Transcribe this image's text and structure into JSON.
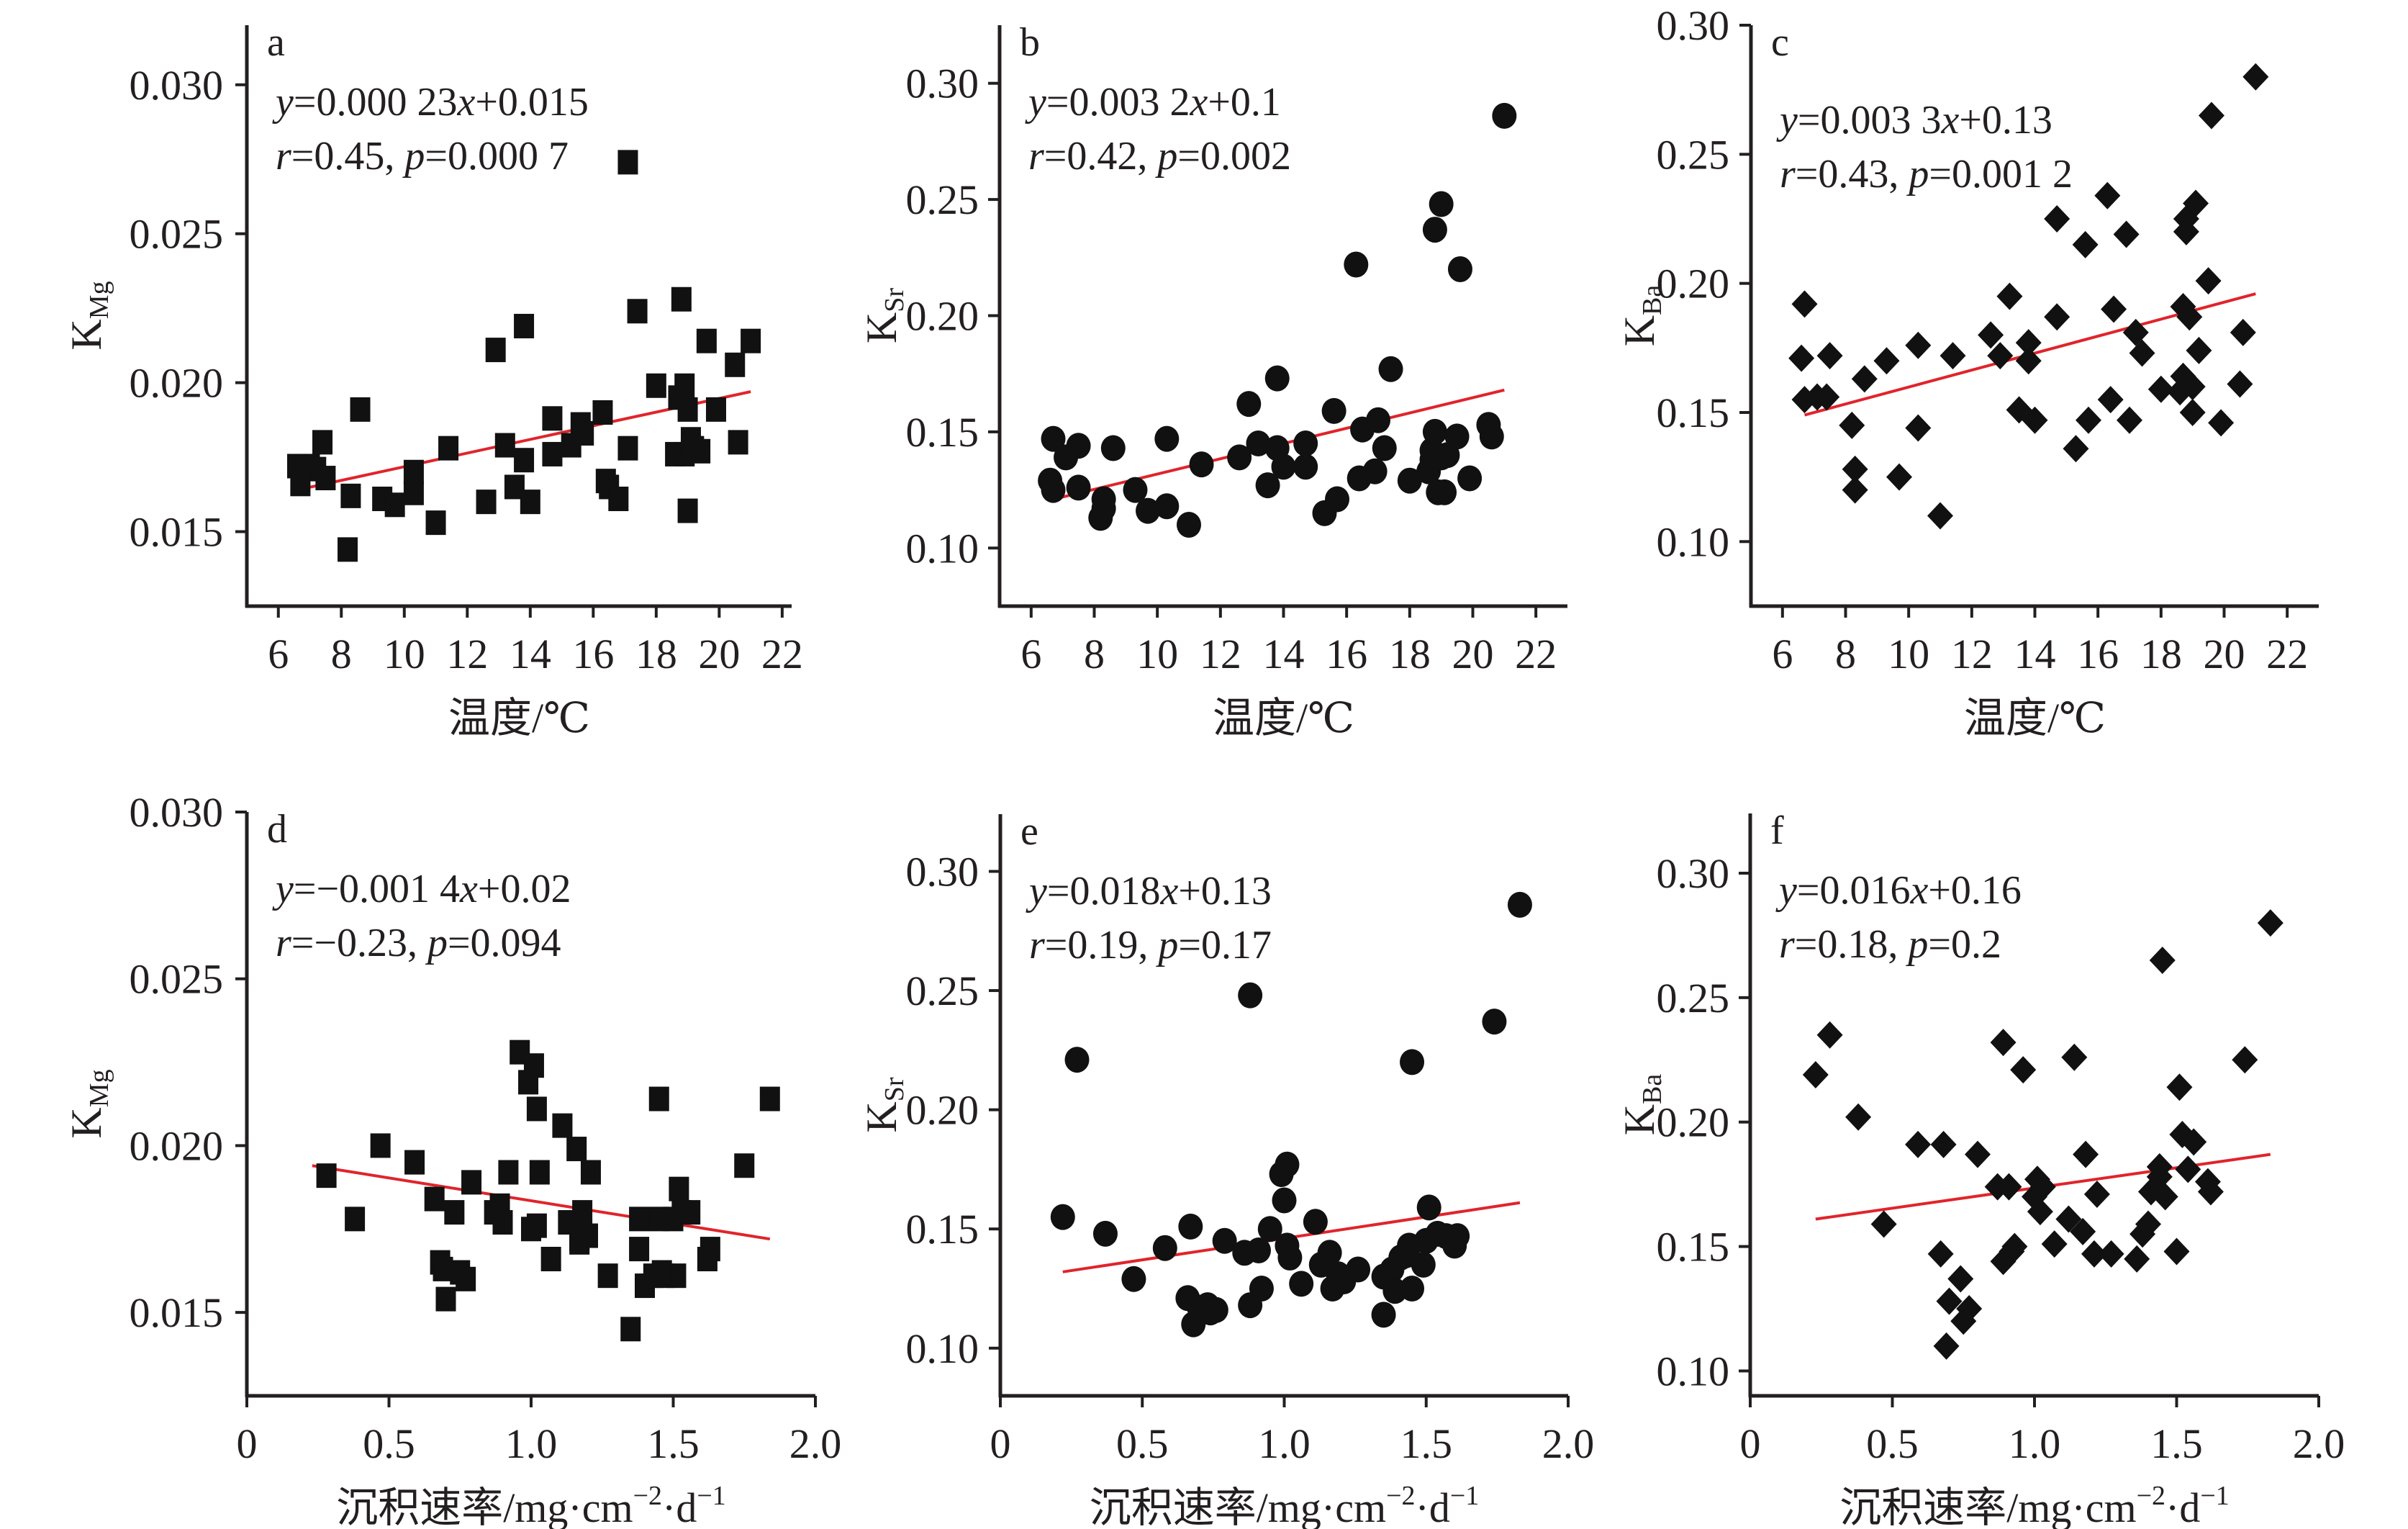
{
  "figure": {
    "regression_line_color": "#e0242b",
    "marker_color": "#111111"
  },
  "chart_data": [
    {
      "id": "a",
      "type": "scatter",
      "panel_label": "a",
      "marker": "square",
      "xlabel": "温度/℃",
      "ylabel_main": "K",
      "ylabel_sub": "Mg",
      "xlim": [
        5.0,
        22.3
      ],
      "ylim": [
        0.0125,
        0.032
      ],
      "xticks": [
        6,
        8,
        10,
        12,
        14,
        16,
        18,
        20,
        22
      ],
      "xtick_labels": [
        "6",
        "8",
        "10",
        "12",
        "14",
        "16",
        "18",
        "20",
        "22"
      ],
      "yticks": [
        0.015,
        0.02,
        0.025,
        0.03
      ],
      "ytick_labels": [
        "0.015",
        "0.020",
        "0.025",
        "0.030"
      ],
      "equation": {
        "y": "y",
        "rest": "=0.000 23",
        "x": "x",
        "tail": "+0.015"
      },
      "stats": {
        "r": "r",
        "r_val": "=0.45, ",
        "p": "p",
        "p_val": "=0.000 7"
      },
      "fit": {
        "slope": 0.00023,
        "intercept": 0.015,
        "x_range": [
          6.6,
          21.0
        ],
        "y_range": [
          0.0164,
          0.0197
        ]
      },
      "x": [
        6.6,
        6.8,
        7.0,
        7.2,
        6.7,
        7.5,
        7.4,
        8.3,
        8.6,
        8.2,
        9.3,
        9.7,
        10.3,
        10.3,
        11.0,
        11.4,
        12.6,
        12.9,
        13.2,
        13.5,
        13.8,
        13.8,
        14.0,
        14.7,
        14.7,
        15.3,
        15.6,
        15.7,
        16.3,
        16.4,
        16.5,
        16.8,
        17.1,
        17.4,
        17.1,
        18.0,
        18.6,
        18.7,
        18.8,
        18.9,
        19.0,
        19.0,
        19.1,
        19.2,
        19.4,
        19.6,
        19.9,
        20.5,
        20.6,
        21.0,
        18.9,
        19.1
      ],
      "y": [
        0.0172,
        0.0172,
        0.0172,
        0.0171,
        0.0166,
        0.0168,
        0.018,
        0.0162,
        0.0191,
        0.0144,
        0.0161,
        0.0159,
        0.0163,
        0.017,
        0.0153,
        0.0178,
        0.016,
        0.0211,
        0.0179,
        0.0165,
        0.0174,
        0.0219,
        0.016,
        0.0176,
        0.0188,
        0.0179,
        0.0186,
        0.0183,
        0.019,
        0.0167,
        0.0165,
        0.0161,
        0.0274,
        0.0224,
        0.0178,
        0.0199,
        0.0176,
        0.0195,
        0.0228,
        0.0199,
        0.0191,
        0.0157,
        0.0181,
        0.0178,
        0.0177,
        0.0214,
        0.0191,
        0.0206,
        0.018,
        0.0214,
        0.0176,
        0.0178
      ]
    },
    {
      "id": "b",
      "type": "scatter",
      "panel_label": "b",
      "marker": "circle",
      "xlabel": "温度/℃",
      "ylabel_main": "K",
      "ylabel_sub": "Sr",
      "xlim": [
        5.0,
        23.0
      ],
      "ylim": [
        0.075,
        0.325
      ],
      "xticks": [
        6,
        8,
        10,
        12,
        14,
        16,
        18,
        20,
        22
      ],
      "xtick_labels": [
        "6",
        "8",
        "10",
        "12",
        "14",
        "16",
        "18",
        "20",
        "22"
      ],
      "yticks": [
        0.1,
        0.15,
        0.2,
        0.25,
        0.3
      ],
      "ytick_labels": [
        "0.10",
        "0.15",
        "0.20",
        "0.25",
        "0.30"
      ],
      "equation": {
        "y": "y",
        "rest": "=0.003 2",
        "x": "x",
        "tail": "+0.1"
      },
      "stats": {
        "r": "r",
        "r_val": "=0.42, ",
        "p": "p",
        "p_val": "=0.002"
      },
      "fit": {
        "slope": 0.0032,
        "intercept": 0.1,
        "x_range": [
          6.7,
          21.0
        ],
        "y_range": [
          0.121,
          0.168
        ]
      },
      "x": [
        6.6,
        6.7,
        6.7,
        7.1,
        7.5,
        7.5,
        8.2,
        8.3,
        8.3,
        8.6,
        9.3,
        9.7,
        10.3,
        10.3,
        11.0,
        11.4,
        12.6,
        12.9,
        13.2,
        13.5,
        13.8,
        13.8,
        14.0,
        14.7,
        14.7,
        15.3,
        15.6,
        15.7,
        16.3,
        16.4,
        16.5,
        16.9,
        17.0,
        17.2,
        17.4,
        18.0,
        18.6,
        18.7,
        18.7,
        18.8,
        18.9,
        19.0,
        19.1,
        19.2,
        19.5,
        19.6,
        19.9,
        20.5,
        20.6,
        21.0,
        18.8,
        19.0
      ],
      "y": [
        0.129,
        0.125,
        0.147,
        0.139,
        0.144,
        0.126,
        0.113,
        0.117,
        0.121,
        0.143,
        0.125,
        0.116,
        0.147,
        0.118,
        0.11,
        0.136,
        0.139,
        0.162,
        0.145,
        0.127,
        0.143,
        0.173,
        0.135,
        0.145,
        0.135,
        0.115,
        0.159,
        0.121,
        0.222,
        0.13,
        0.151,
        0.133,
        0.155,
        0.143,
        0.177,
        0.129,
        0.133,
        0.138,
        0.142,
        0.15,
        0.124,
        0.139,
        0.124,
        0.14,
        0.148,
        0.22,
        0.13,
        0.153,
        0.148,
        0.286,
        0.237,
        0.248
      ]
    },
    {
      "id": "c",
      "type": "scatter",
      "panel_label": "c",
      "marker": "diamond",
      "xlabel": "温度/℃",
      "ylabel_main": "K",
      "ylabel_sub": "Ba",
      "xlim": [
        5.0,
        23.0
      ],
      "ylim": [
        0.075,
        0.3
      ],
      "xticks": [
        6,
        8,
        10,
        12,
        14,
        16,
        18,
        20,
        22
      ],
      "xtick_labels": [
        "6",
        "8",
        "10",
        "12",
        "14",
        "16",
        "18",
        "20",
        "22"
      ],
      "yticks": [
        0.1,
        0.15,
        0.2,
        0.25,
        0.3
      ],
      "ytick_labels": [
        "0.10",
        "0.15",
        "0.20",
        "0.25",
        "0.30"
      ],
      "equation": {
        "y": "y",
        "rest": "=0.003 3",
        "x": "x",
        "tail": "+0.13"
      },
      "stats": {
        "r": "r",
        "r_val": "=0.43, ",
        "p": "p",
        "p_val": "=0.001 2"
      },
      "fit": {
        "slope": 0.0033,
        "intercept": 0.13,
        "x_range": [
          6.7,
          21.0
        ],
        "y_range": [
          0.149,
          0.196
        ]
      },
      "x": [
        6.7,
        6.6,
        6.7,
        7.1,
        7.5,
        7.4,
        8.2,
        8.3,
        8.3,
        8.6,
        9.3,
        9.7,
        10.3,
        10.3,
        11.0,
        11.4,
        12.6,
        12.9,
        13.2,
        13.5,
        13.8,
        13.8,
        14.0,
        14.7,
        14.7,
        15.3,
        15.6,
        15.7,
        16.3,
        16.4,
        16.5,
        16.9,
        17.0,
        17.2,
        17.4,
        18.0,
        18.6,
        18.7,
        18.7,
        18.8,
        18.8,
        18.9,
        19.0,
        19.0,
        19.1,
        19.2,
        19.5,
        19.6,
        19.9,
        20.5,
        20.6,
        21.0
      ],
      "y": [
        0.192,
        0.171,
        0.155,
        0.156,
        0.172,
        0.156,
        0.145,
        0.128,
        0.12,
        0.163,
        0.17,
        0.125,
        0.176,
        0.144,
        0.11,
        0.172,
        0.18,
        0.172,
        0.195,
        0.151,
        0.177,
        0.17,
        0.147,
        0.225,
        0.187,
        0.136,
        0.215,
        0.147,
        0.234,
        0.155,
        0.19,
        0.219,
        0.147,
        0.181,
        0.173,
        0.159,
        0.158,
        0.191,
        0.164,
        0.225,
        0.22,
        0.187,
        0.15,
        0.16,
        0.231,
        0.174,
        0.201,
        0.265,
        0.146,
        0.161,
        0.181,
        0.28
      ]
    },
    {
      "id": "d",
      "type": "scatter",
      "panel_label": "d",
      "marker": "square",
      "xlabel": "沉积速率/mg·cm",
      "xlabel_sup1": "−2",
      "xlabel_mid": "·d",
      "xlabel_sup2": "−1",
      "ylabel_main": "K",
      "ylabel_sub": "Mg",
      "xlim": [
        0,
        2.0
      ],
      "ylim": [
        0.0125,
        0.03
      ],
      "xticks": [
        0,
        0.5,
        1.0,
        1.5,
        2.0
      ],
      "xtick_labels": [
        "0",
        "0.5",
        "1.0",
        "1.5",
        "2.0"
      ],
      "yticks": [
        0.015,
        0.02,
        0.025,
        0.03
      ],
      "ytick_labels": [
        "0.015",
        "0.020",
        "0.025",
        "0.030"
      ],
      "equation": {
        "y": "y",
        "rest": "=−0.001 4",
        "x": "x",
        "tail": "+0.02"
      },
      "stats": {
        "r": "r",
        "r_val": "=−0.23, ",
        "p": "p",
        "p_val": "=0.094"
      },
      "fit": {
        "slope": -0.0014,
        "intercept": 0.02,
        "x_range": [
          0.23,
          1.84
        ],
        "y_range": [
          0.0194,
          0.0172
        ]
      },
      "x": [
        0.28,
        0.38,
        0.47,
        0.59,
        0.66,
        0.68,
        0.69,
        0.7,
        0.73,
        0.75,
        0.77,
        0.79,
        0.87,
        0.89,
        0.9,
        0.92,
        0.96,
        0.99,
        1.01,
        1.02,
        1.0,
        1.02,
        1.03,
        1.07,
        1.11,
        1.13,
        1.16,
        1.17,
        1.18,
        1.17,
        1.2,
        1.21,
        1.27,
        1.35,
        1.38,
        1.38,
        1.4,
        1.43,
        1.45,
        1.45,
        1.47,
        1.51,
        1.52,
        1.53,
        1.56,
        1.62,
        1.63,
        1.75,
        1.84,
        1.46,
        1.5
      ],
      "y": [
        0.0191,
        0.0178,
        0.02,
        0.0195,
        0.0184,
        0.0165,
        0.0163,
        0.0154,
        0.018,
        0.0162,
        0.016,
        0.0189,
        0.018,
        0.0182,
        0.0177,
        0.0192,
        0.0228,
        0.0219,
        0.0224,
        0.0211,
        0.0175,
        0.0176,
        0.0192,
        0.0166,
        0.0206,
        0.0177,
        0.0199,
        0.0172,
        0.018,
        0.0171,
        0.0173,
        0.0192,
        0.0161,
        0.0145,
        0.0169,
        0.0178,
        0.0158,
        0.0161,
        0.0178,
        0.0214,
        0.0161,
        0.0161,
        0.0187,
        0.018,
        0.018,
        0.0166,
        0.0169,
        0.0194,
        0.0214,
        0.0162,
        0.0178
      ]
    },
    {
      "id": "e",
      "type": "scatter",
      "panel_label": "e",
      "marker": "circle",
      "xlabel": "沉积速率/mg·cm",
      "xlabel_sup1": "−2",
      "xlabel_mid": "·d",
      "xlabel_sup2": "−1",
      "ylabel_main": "K",
      "ylabel_sub": "Sr",
      "xlim": [
        0,
        2.0
      ],
      "ylim": [
        0.08,
        0.324
      ],
      "xticks": [
        0,
        0.5,
        1.0,
        1.5,
        2.0
      ],
      "xtick_labels": [
        "0",
        "0.5",
        "1.0",
        "1.5",
        "2.0"
      ],
      "yticks": [
        0.1,
        0.15,
        0.2,
        0.25,
        0.3
      ],
      "ytick_labels": [
        "0.10",
        "0.15",
        "0.20",
        "0.25",
        "0.30"
      ],
      "equation": {
        "y": "y",
        "rest": "=0.018",
        "x": "x",
        "tail": "+0.13"
      },
      "stats": {
        "r": "r",
        "r_val": "=0.19, ",
        "p": "p",
        "p_val": "=0.17"
      },
      "fit": {
        "slope": 0.018,
        "intercept": 0.13,
        "x_range": [
          0.22,
          1.83
        ],
        "y_range": [
          0.132,
          0.161
        ]
      },
      "x": [
        0.22,
        0.27,
        0.37,
        0.47,
        0.58,
        0.66,
        0.67,
        0.68,
        0.7,
        0.73,
        0.74,
        0.76,
        0.79,
        0.86,
        0.88,
        0.88,
        0.91,
        0.92,
        0.95,
        0.99,
        1.0,
        1.01,
        1.01,
        1.02,
        1.06,
        1.11,
        1.13,
        1.16,
        1.17,
        1.19,
        1.21,
        1.26,
        1.35,
        1.35,
        1.38,
        1.39,
        1.41,
        1.43,
        1.44,
        1.45,
        1.45,
        1.49,
        1.5,
        1.51,
        1.54,
        1.57,
        1.6,
        1.61,
        1.74,
        1.83
      ],
      "y": [
        0.155,
        0.221,
        0.148,
        0.129,
        0.142,
        0.121,
        0.151,
        0.11,
        0.117,
        0.118,
        0.115,
        0.116,
        0.145,
        0.14,
        0.248,
        0.118,
        0.141,
        0.125,
        0.15,
        0.173,
        0.162,
        0.177,
        0.143,
        0.138,
        0.127,
        0.153,
        0.135,
        0.14,
        0.125,
        0.131,
        0.128,
        0.133,
        0.13,
        0.114,
        0.133,
        0.124,
        0.138,
        0.139,
        0.143,
        0.22,
        0.125,
        0.135,
        0.145,
        0.159,
        0.148,
        0.147,
        0.143,
        0.147,
        0.237,
        0.286
      ]
    },
    {
      "id": "f",
      "type": "scatter",
      "panel_label": "f",
      "marker": "diamond",
      "xlabel": "沉积速率/mg·cm",
      "xlabel_sup1": "−2",
      "xlabel_mid": "·d",
      "xlabel_sup2": "−1",
      "ylabel_main": "K",
      "ylabel_sub": "Ba",
      "xlim": [
        0,
        2.0
      ],
      "ylim": [
        0.09,
        0.324
      ],
      "xticks": [
        0,
        0.5,
        1.0,
        1.5,
        2.0
      ],
      "xtick_labels": [
        "0",
        "0.5",
        "1.0",
        "1.5",
        "2.0"
      ],
      "yticks": [
        0.1,
        0.15,
        0.2,
        0.25,
        0.3
      ],
      "ytick_labels": [
        "0.10",
        "0.15",
        "0.20",
        "0.25",
        "0.30"
      ],
      "equation": {
        "y": "y",
        "rest": "=0.016",
        "x": "x",
        "tail": "+0.16"
      },
      "stats": {
        "r": "r",
        "r_val": "=0.18, ",
        "p": "p",
        "p_val": "=0.2"
      },
      "fit": {
        "slope": 0.016,
        "intercept": 0.16,
        "x_range": [
          0.23,
          1.83
        ],
        "y_range": [
          0.161,
          0.187
        ]
      },
      "x": [
        0.23,
        0.28,
        0.38,
        0.47,
        0.59,
        0.67,
        0.68,
        0.69,
        0.7,
        0.74,
        0.75,
        0.77,
        0.8,
        0.87,
        0.89,
        0.89,
        0.91,
        0.92,
        0.93,
        0.96,
        1.0,
        1.01,
        1.02,
        1.03,
        1.07,
        1.12,
        1.14,
        1.17,
        1.18,
        1.21,
        1.22,
        1.27,
        1.36,
        1.38,
        1.4,
        1.41,
        1.44,
        1.44,
        1.45,
        1.46,
        1.5,
        1.51,
        1.52,
        1.54,
        1.56,
        1.61,
        1.62,
        1.74,
        1.83
      ],
      "y": [
        0.219,
        0.235,
        0.202,
        0.159,
        0.191,
        0.147,
        0.191,
        0.11,
        0.128,
        0.137,
        0.12,
        0.125,
        0.187,
        0.174,
        0.232,
        0.144,
        0.174,
        0.148,
        0.15,
        0.221,
        0.17,
        0.177,
        0.164,
        0.174,
        0.151,
        0.161,
        0.226,
        0.156,
        0.187,
        0.147,
        0.171,
        0.147,
        0.145,
        0.155,
        0.159,
        0.172,
        0.182,
        0.178,
        0.265,
        0.17,
        0.148,
        0.214,
        0.195,
        0.181,
        0.192,
        0.176,
        0.172,
        0.225,
        0.28
      ]
    }
  ]
}
